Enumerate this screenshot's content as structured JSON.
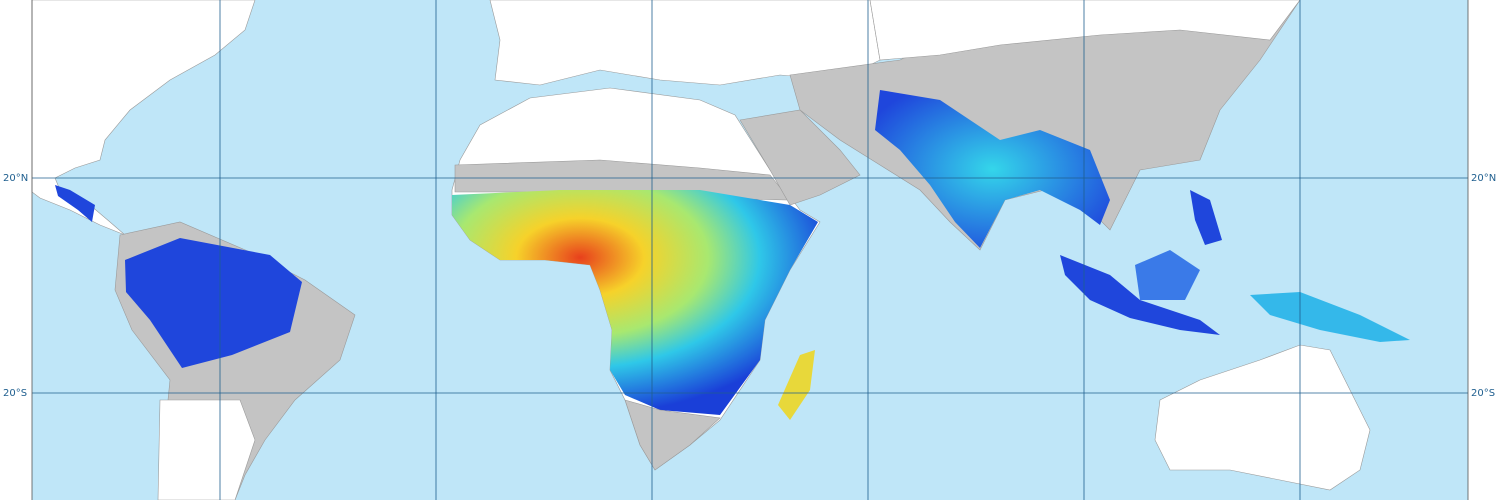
{
  "map": {
    "latitude_labels": {
      "left": [
        "20°N",
        "20°S"
      ],
      "right": [
        "20°N",
        "20°S"
      ]
    }
  }
}
